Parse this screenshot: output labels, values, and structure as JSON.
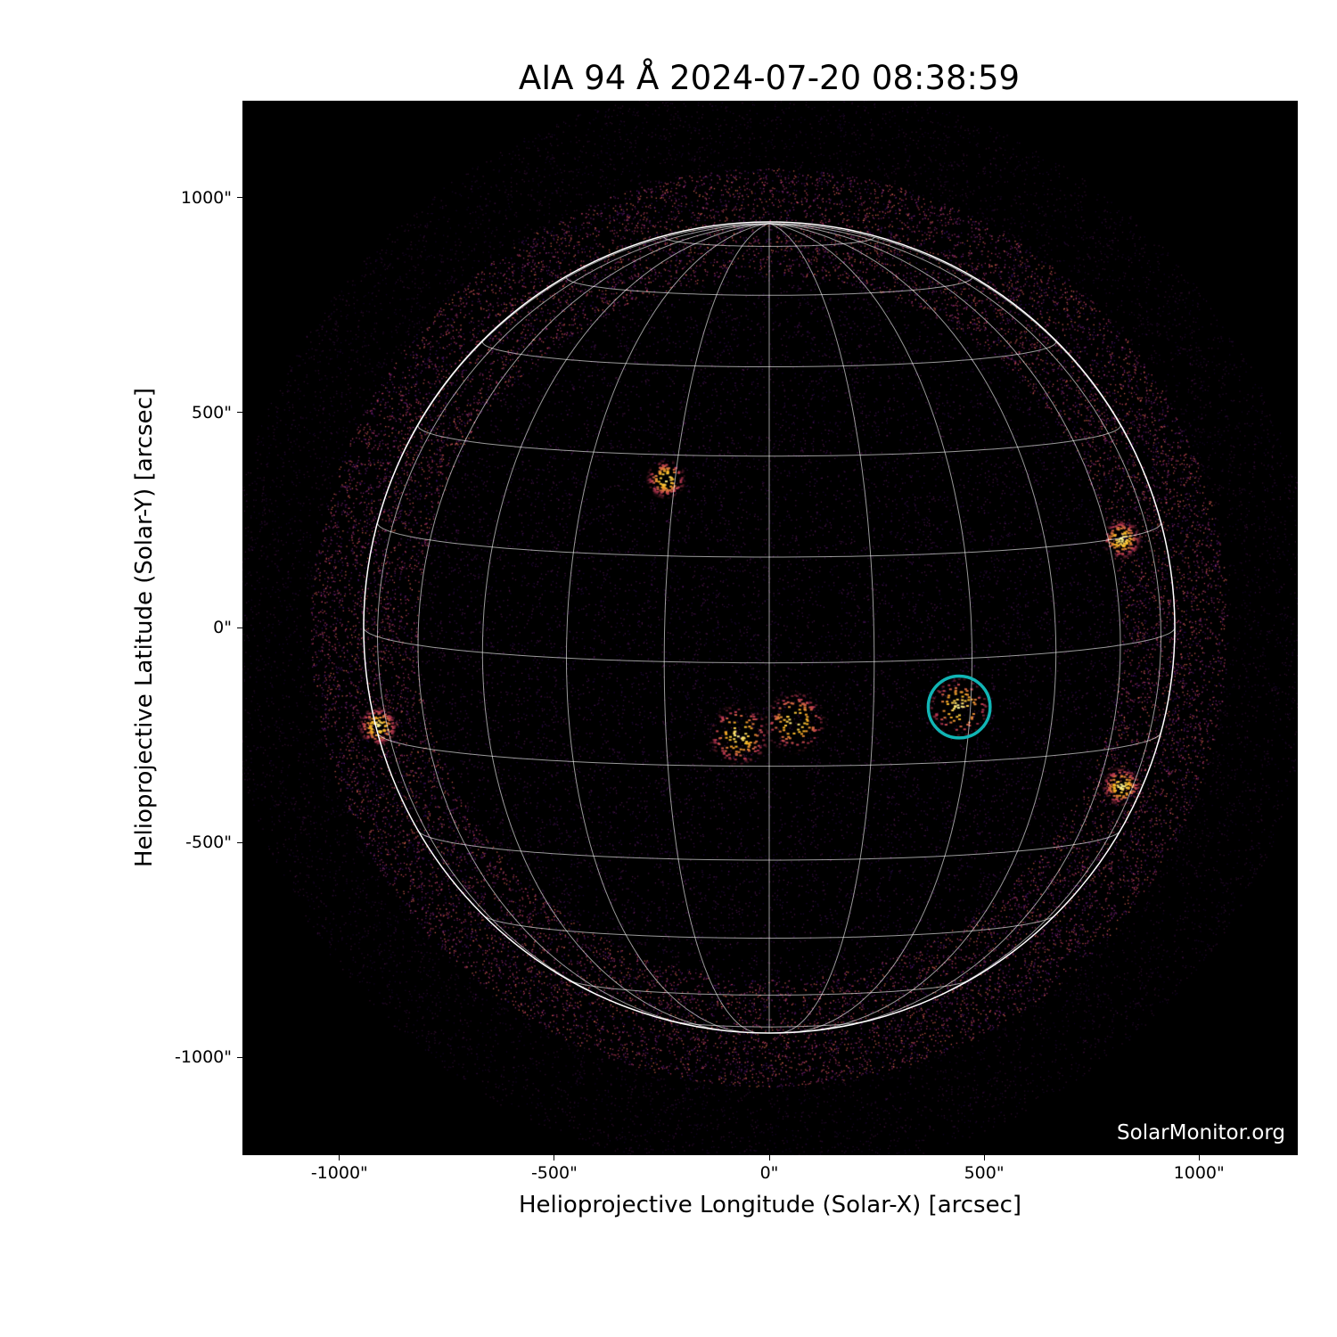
{
  "title": "AIA 94 Å 2024-07-20 08:38:59",
  "x_axis": {
    "label": "Helioprojective Longitude (Solar-X) [arcsec]",
    "ticks": [
      "-1000\"",
      "-500\"",
      "0\"",
      "500\"",
      "1000\""
    ],
    "tick_values": [
      -1000,
      -500,
      0,
      500,
      1000
    ],
    "range": [
      -1228,
      1228
    ]
  },
  "y_axis": {
    "label": "Helioprojective Latitude (Solar-Y) [arcsec]",
    "ticks": [
      "1000\"",
      "500\"",
      "0\"",
      "-500\"",
      "-1000\""
    ],
    "tick_values": [
      1000,
      500,
      0,
      -500,
      -1000
    ],
    "range": [
      -1228,
      1228
    ]
  },
  "watermark": "SolarMonitor.org",
  "colormap": "inferno",
  "grid": {
    "visible": true,
    "spacing_deg": 15,
    "color": "#ffffff"
  },
  "highlight_circle": {
    "x_arcsec": 442,
    "y_arcsec": -185,
    "radius_arcsec": 72,
    "color": "#11b5b5"
  },
  "active_regions": [
    {
      "x_arcsec": 442,
      "y_arcsec": -185
    },
    {
      "x_arcsec": -70,
      "y_arcsec": -250
    },
    {
      "x_arcsec": 60,
      "y_arcsec": -220
    },
    {
      "x_arcsec": 820,
      "y_arcsec": 205
    },
    {
      "x_arcsec": -910,
      "y_arcsec": -230
    },
    {
      "x_arcsec": -240,
      "y_arcsec": 345
    },
    {
      "x_arcsec": 820,
      "y_arcsec": -370
    }
  ]
}
